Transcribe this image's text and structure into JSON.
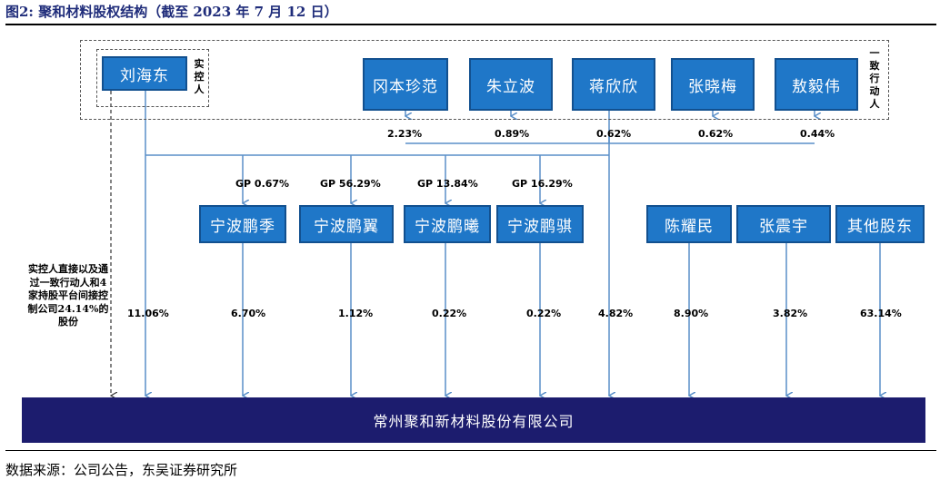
{
  "header": {
    "title": "图2:  聚和材料股权结构（截至 2023 年 7 月 12 日）"
  },
  "controller": {
    "name": "刘海东",
    "label": "实控人",
    "pct": "11.06%"
  },
  "concert_label": "一致行动人",
  "concert": [
    {
      "name": "冈本珍范",
      "pct": "2.23%"
    },
    {
      "name": "朱立波",
      "pct": "0.89%"
    },
    {
      "name": "蒋欣欣",
      "pct": "0.62%"
    },
    {
      "name": "张晓梅",
      "pct": "0.62%"
    },
    {
      "name": "敖毅伟",
      "pct": "0.44%"
    }
  ],
  "platforms": [
    {
      "name": "宁波鹏季",
      "gp": "GP 0.67%",
      "pct": "6.70%"
    },
    {
      "name": "宁波鹏翼",
      "gp": "GP 56.29%",
      "pct": "1.12%"
    },
    {
      "name": "宁波鹏曦",
      "gp": "GP 13.84%",
      "pct": "0.22%"
    },
    {
      "name": "宁波鹏骐",
      "gp": "GP 16.29%",
      "pct": "0.22%"
    }
  ],
  "concert_total_pct": "4.82%",
  "others": [
    {
      "name": "陈耀民",
      "pct": "8.90%"
    },
    {
      "name": "张震宇",
      "pct": "3.82%"
    },
    {
      "name": "其他股东",
      "pct": "63.14%"
    }
  ],
  "note": "实控人直接以及通过一致行动人和4家持股平台间接控制公司24.14%的股份",
  "company": {
    "name": "常州聚和新材料股份有限公司"
  },
  "footer": {
    "source": "数据来源：公司公告，东吴证券研究所"
  }
}
